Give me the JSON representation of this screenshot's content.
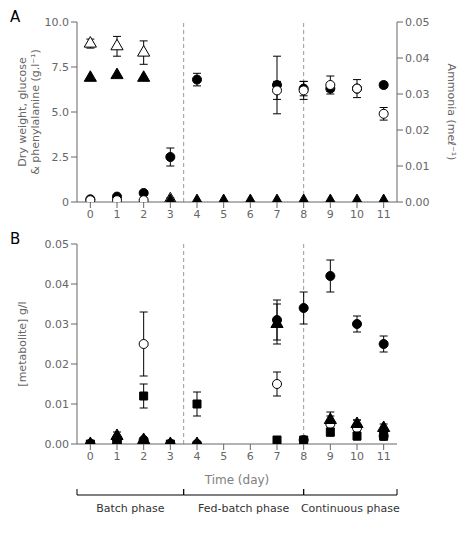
{
  "chart_data": [
    {
      "type": "scatter",
      "title": "A",
      "ylabel": "Dry weight, glucose\n& phenylalanine (g.l⁻¹)",
      "y2label": "Ammonia (meℓ⁻¹)",
      "xlim": [
        -0.5,
        11.5
      ],
      "xticks": [
        0,
        1,
        2,
        3,
        4,
        5,
        6,
        7,
        8,
        9,
        10,
        11
      ],
      "ylim": [
        0,
        10.0
      ],
      "yticks": [
        0,
        2.5,
        {
          "value": 5.0,
          "label": "5.0"
        },
        7.5,
        {
          "value": 10.0,
          "label": "10.0"
        }
      ],
      "y2lim": [
        0,
        0.05
      ],
      "y2ticks": [
        {
          "value": 0.0,
          "label": "0.00"
        },
        0.01,
        0.02,
        0.03,
        0.04,
        0.05
      ],
      "grid": false,
      "vlines": [
        3.5,
        8.0
      ],
      "series": [
        {
          "x": [
            0,
            1,
            2,
            3
          ],
          "values": [
            8.8,
            8.65,
            8.3,
            0.15
          ],
          "yerr": [
            0.25,
            0.55,
            0.65,
            0.08
          ],
          "marker": "triangle-open",
          "color": "black"
        },
        {
          "x": [
            0,
            1,
            2,
            3,
            4,
            5,
            6,
            7,
            8,
            9,
            10,
            11
          ],
          "values": [
            6.9,
            7.05,
            6.9,
            0.05,
            0.05,
            0.05,
            0.05,
            0.05,
            0.05,
            0.05,
            0.05,
            0.05
          ],
          "yerr": [
            0.0,
            0.0,
            0.0,
            0.0,
            0.0,
            0.0,
            0.0,
            0.0,
            0.0,
            0.0,
            0.0,
            0.0
          ],
          "marker": "triangle",
          "color": "black"
        },
        {
          "x": [
            0,
            1,
            2,
            3,
            4,
            7,
            8,
            9,
            10,
            11
          ],
          "values": [
            0.15,
            0.3,
            0.5,
            2.5,
            6.8,
            6.5,
            6.3,
            6.3,
            6.3,
            6.5
          ],
          "yerr": [
            0.05,
            0.1,
            0.1,
            0.5,
            0.35,
            1.6,
            0.4,
            0.15,
            0.15,
            0.15
          ],
          "marker": "circle",
          "color": "black"
        },
        {
          "x": [
            0,
            1,
            2,
            7,
            8,
            9,
            10,
            11
          ],
          "values": [
            0.1,
            0.1,
            0.1,
            6.2,
            6.2,
            6.5,
            6.3,
            4.9
          ],
          "yerr": [
            0.05,
            0.05,
            0.05,
            0.5,
            0.5,
            0.5,
            0.5,
            0.35
          ],
          "marker": "circle-open",
          "color": "black"
        }
      ]
    },
    {
      "type": "scatter",
      "title": "B",
      "ylabel": "[metabolite] g/l",
      "xlabel": "Time (day)",
      "xlim": [
        -0.5,
        11.5
      ],
      "xticks": [
        0,
        1,
        2,
        3,
        4,
        5,
        6,
        7,
        8,
        9,
        10,
        11
      ],
      "ylim": [
        0,
        0.05
      ],
      "yticks": [
        {
          "value": 0.0,
          "label": "0.00"
        },
        0.01,
        0.02,
        0.03,
        0.04,
        0.05
      ],
      "grid": false,
      "vlines": [
        3.5,
        8.0
      ],
      "series": [
        {
          "x": [
            0,
            1,
            2,
            3,
            4,
            7,
            8,
            9,
            10,
            11
          ],
          "values": [
            0.0,
            0.001,
            0.025,
            0.0,
            0.0,
            0.015,
            0.001,
            0.005,
            0.004,
            0.002
          ],
          "yerr": [
            0.0,
            0.0,
            0.008,
            0.0,
            0.0,
            0.003,
            0.0,
            0.003,
            0.002,
            0.001
          ],
          "marker": "circle-open",
          "color": "black"
        },
        {
          "x": [
            0,
            1,
            2,
            3,
            4,
            7,
            8,
            9,
            10,
            11
          ],
          "values": [
            0.0,
            0.001,
            0.012,
            0.0,
            0.01,
            0.001,
            0.001,
            0.003,
            0.002,
            0.002
          ],
          "yerr": [
            0.0,
            0.0,
            0.003,
            0.0,
            0.003,
            0.0,
            0.0,
            0.001,
            0.001,
            0.001
          ],
          "marker": "square",
          "color": "black"
        },
        {
          "x": [
            0,
            1,
            2,
            3,
            4,
            7,
            8,
            9,
            10,
            11
          ],
          "values": [
            0.0,
            0.002,
            0.001,
            0.0,
            0.0,
            0.03,
            0.0,
            0.006,
            0.005,
            0.004
          ],
          "yerr": [
            0.0,
            0.001,
            0.0,
            0.0,
            0.0,
            0.005,
            0.0,
            0.001,
            0.001,
            0.001
          ],
          "marker": "triangle",
          "color": "black"
        },
        {
          "x": [
            0,
            1,
            2,
            3,
            4,
            7,
            8,
            9,
            10,
            11
          ],
          "values": [
            0.0,
            0.0,
            0.001,
            0.0,
            0.0,
            0.031,
            0.034,
            0.042,
            0.03,
            0.025
          ],
          "yerr": [
            0.0,
            0.0,
            0.0,
            0.0,
            0.0,
            0.005,
            0.004,
            0.004,
            0.002,
            0.002
          ],
          "marker": "circle",
          "color": "black"
        }
      ],
      "annotations": [
        {
          "text": "Batch phase",
          "x_start": -0.5,
          "x_end": 3.5
        },
        {
          "text": "Fed-batch phase",
          "x_start": 3.5,
          "x_end": 8.0
        },
        {
          "text": "Continuous phase",
          "x_start": 8.0,
          "x_end": 11.5
        }
      ]
    }
  ]
}
